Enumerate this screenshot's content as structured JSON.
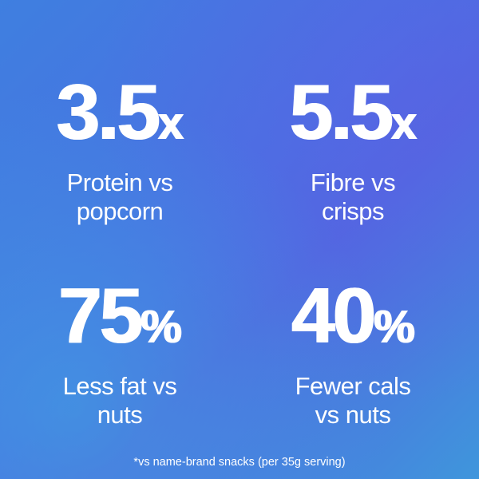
{
  "stats": [
    {
      "number": "3.5",
      "unit": "x",
      "label_line1": "Protein vs",
      "label_line2": "popcorn"
    },
    {
      "number": "5.5",
      "unit": "x",
      "label_line1": "Fibre vs",
      "label_line2": "crisps"
    },
    {
      "number": "75",
      "unit": "%",
      "label_line1": "Less fat vs",
      "label_line2": "nuts"
    },
    {
      "number": "40",
      "unit": "%",
      "label_line1": "Fewer cals",
      "label_line2": "vs nuts"
    }
  ],
  "footnote": "*vs name-brand snacks (per 35g serving)",
  "colors": {
    "text": "#ffffff",
    "background_start": "#3f7fe0",
    "background_mid": "#5068e0",
    "background_end": "#3f96dc"
  }
}
